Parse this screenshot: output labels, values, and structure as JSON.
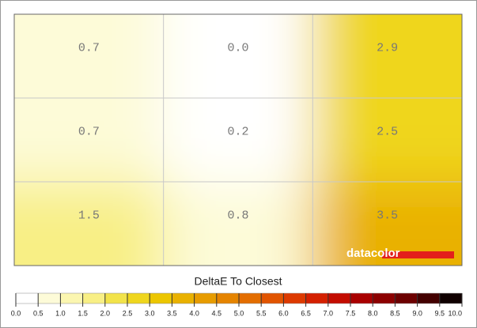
{
  "chart_data": {
    "type": "heatmap",
    "rows": 3,
    "cols": 3,
    "values": [
      0.7,
      0.0,
      2.9,
      0.7,
      0.2,
      2.5,
      1.5,
      0.8,
      3.5
    ],
    "value_labels": [
      "0.7",
      "0.0",
      "2.9",
      "0.7",
      "0.2",
      "2.5",
      "1.5",
      "0.8",
      "3.5"
    ],
    "colorbar_title": "DeltaE To Closest",
    "logo": "datacolor",
    "clim": [
      0,
      10
    ],
    "cticks": [
      {
        "value": 0,
        "label": "0.0"
      },
      0.5,
      {
        "value": 1,
        "label": "1.0"
      },
      1.5,
      {
        "value": 2,
        "label": "2.0"
      },
      2.5,
      {
        "value": 3,
        "label": "3.0"
      },
      3.5,
      {
        "value": 4,
        "label": "4.0"
      },
      4.5,
      {
        "value": 5,
        "label": "5.0"
      },
      5.5,
      {
        "value": 6,
        "label": "6.0"
      },
      6.5,
      {
        "value": 7,
        "label": "7.0"
      },
      7.5,
      {
        "value": 8,
        "label": "8.0"
      },
      8.5,
      {
        "value": 9,
        "label": "9.0"
      },
      9.5,
      {
        "value": 10,
        "label": "10.0"
      }
    ],
    "colors": [
      "#ffffff",
      "#fdfbd8",
      "#fbf6b0",
      "#f8ef85",
      "#f2e34a",
      "#efd61e",
      "#ecc600",
      "#e9b100",
      "#e79c00",
      "#e58400",
      "#e36d00",
      "#e15400",
      "#dd3a00",
      "#d42000",
      "#c30c00",
      "#a90000",
      "#8c0000",
      "#6c0000",
      "#430000",
      "#100000"
    ],
    "grid": true
  }
}
